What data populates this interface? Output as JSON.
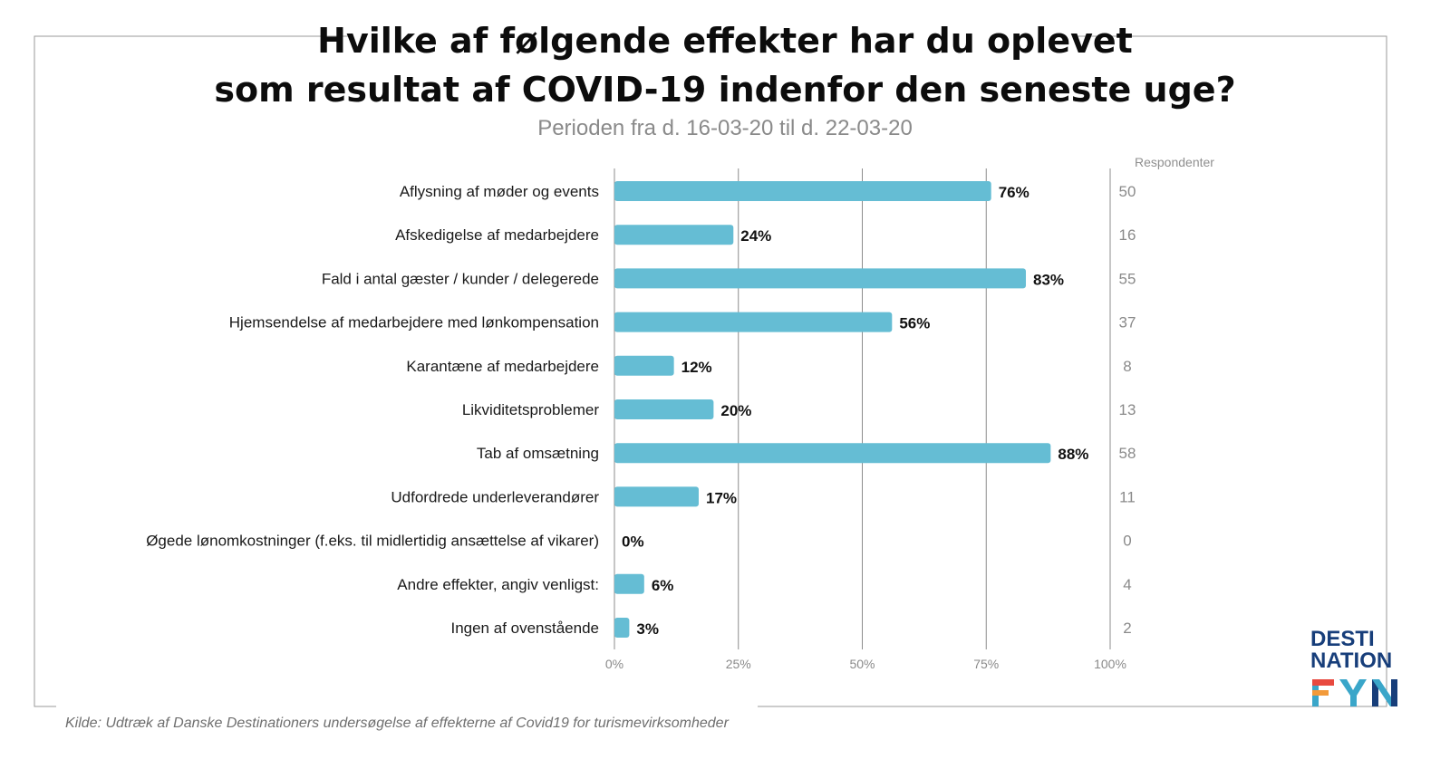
{
  "title_line1": "Hvilke af følgende effekter har du oplevet",
  "title_line2": "som resultat af COVID-19 indenfor den seneste uge?",
  "subtitle": "Perioden fra d. 16-03-20 til d. 22-03-20",
  "respondents_header": "Respondenter",
  "source": "Kilde: Udtræk af Danske Destinationers undersøgelse af effekterne af Covid19 for turismevirksomheder",
  "logo": {
    "line1": "DESTI",
    "line2": "NATION",
    "line3": "FYN",
    "colors": [
      "#e8493f",
      "#f29a3a",
      "#3aa6c9",
      "#173e7a"
    ]
  },
  "colors": {
    "bar": "#65bdd4",
    "grid": "#8c8c8c",
    "axis_text": "#8a8a8a",
    "frame": "#9a9a9a"
  },
  "chart_data": {
    "type": "bar",
    "orientation": "horizontal",
    "categories": [
      "Aflysning af møder og events",
      "Afskedigelse af medarbejdere",
      "Fald i antal gæster / kunder / delegerede",
      "Hjemsendelse af medarbejdere med lønkompensation",
      "Karantæne af medarbejdere",
      "Likviditetsproblemer",
      "Tab af omsætning",
      "Udfordrede underleverandører",
      "Øgede lønomkostninger (f.eks. til midlertidig ansættelse af vikarer)",
      "Andre effekter, angiv venligst:",
      "Ingen af ovenstående"
    ],
    "values": [
      76,
      24,
      83,
      56,
      12,
      20,
      88,
      17,
      0,
      6,
      3
    ],
    "value_labels": [
      "76%",
      "24%",
      "83%",
      "56%",
      "12%",
      "20%",
      "88%",
      "17%",
      "0%",
      "6%",
      "3%"
    ],
    "respondents": [
      "50",
      "16",
      "55",
      "37",
      "8",
      "13",
      "58",
      "11",
      "0",
      "4",
      "2"
    ],
    "xlim": [
      0,
      100
    ],
    "xticks": [
      0,
      25,
      50,
      75,
      100
    ],
    "xtick_labels": [
      "0%",
      "25%",
      "50%",
      "75%",
      "100%"
    ],
    "grid": true
  }
}
